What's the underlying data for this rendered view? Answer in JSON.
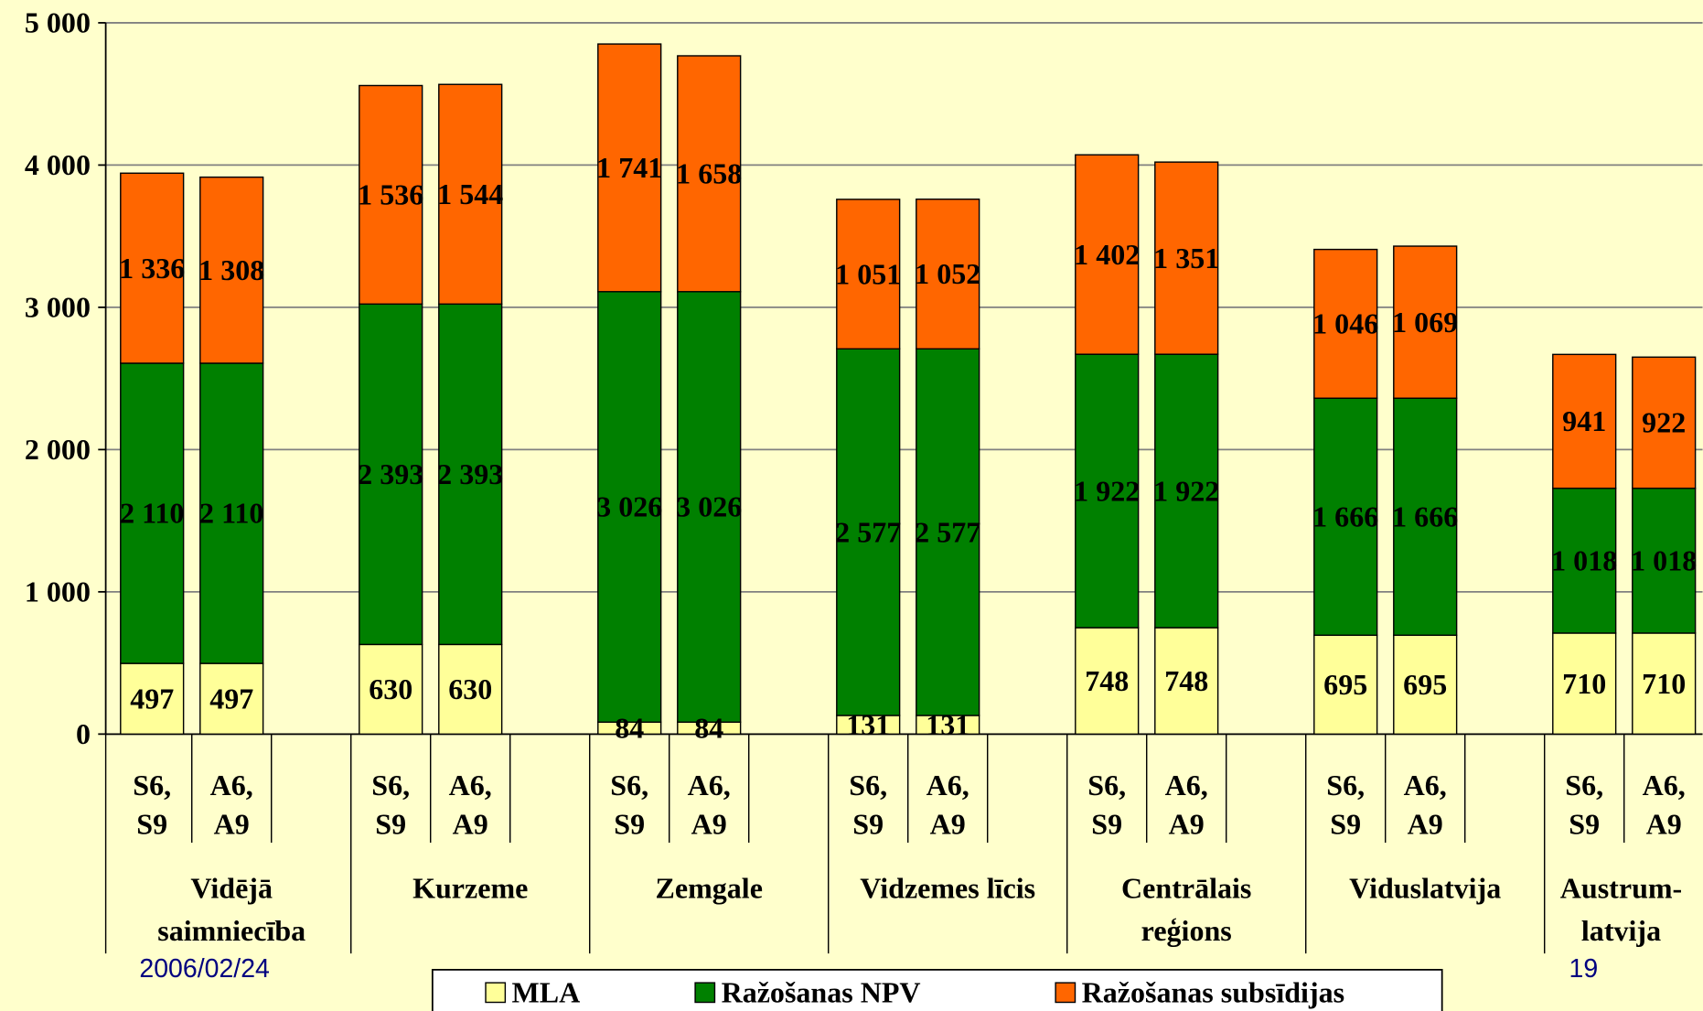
{
  "chart_data": {
    "type": "stacked_bar",
    "categories": [
      "S6,\nS9",
      "A6,\nA9",
      "S6,\nS9",
      "A6,\nA9",
      "S6,\nS9",
      "A6,\nA9",
      "S6,\nS9",
      "A6,\nA9",
      "S6,\nS9",
      "A6,\nA9",
      "S6,\nS9",
      "A6,\nA9",
      "S6,\nS9",
      "A6,\nA9"
    ],
    "groups": [
      "Vidējā\nsaimniecība",
      "Kurzeme",
      "Zemgale",
      "Vidzemes līcis",
      "Centrālais\nreģions",
      "Viduslatvija",
      "Austrum-\nlatvija"
    ],
    "series": [
      {
        "name": "MLA",
        "color": "#ffff99",
        "values": [
          497,
          497,
          630,
          630,
          84,
          84,
          131,
          131,
          748,
          748,
          695,
          695,
          710,
          710
        ]
      },
      {
        "name": "Ražošanas NPV",
        "color": "#008000",
        "values": [
          2110,
          2110,
          2393,
          2393,
          3026,
          3026,
          2577,
          2577,
          1922,
          1922,
          1666,
          1666,
          1018,
          1018
        ],
        "value_labels": [
          "2 110",
          "2 110",
          "2 393",
          "2 393",
          "3 026",
          "3 026",
          "2 577",
          "2 577",
          "1 922",
          "1 922",
          "1 666",
          "1 666",
          "1 018",
          "1 018"
        ]
      },
      {
        "name": "Ražošanas subsīdijas",
        "color": "#ff6600",
        "values": [
          1336,
          1308,
          1536,
          1544,
          1741,
          1658,
          1051,
          1052,
          1402,
          1351,
          1046,
          1069,
          941,
          922
        ],
        "value_labels": [
          "1 336",
          "1 308",
          "1 536",
          "1 544",
          "1 741",
          "1 658",
          "1 051",
          "1 052",
          "1 402",
          "1 351",
          "1 046",
          "1 069",
          "941",
          "922"
        ]
      }
    ],
    "ylim": [
      0,
      5000
    ],
    "yticks": [
      0,
      {
        "value": 1000,
        "label": "1 000"
      },
      {
        "value": 2000,
        "label": "2 000"
      },
      {
        "value": 3000,
        "label": "3 000"
      },
      {
        "value": 4000,
        "label": "4 000"
      },
      {
        "value": 5000,
        "label": "5 000"
      }
    ],
    "grid": true
  },
  "footer": {
    "date": "2006/02/24",
    "page": "19"
  }
}
